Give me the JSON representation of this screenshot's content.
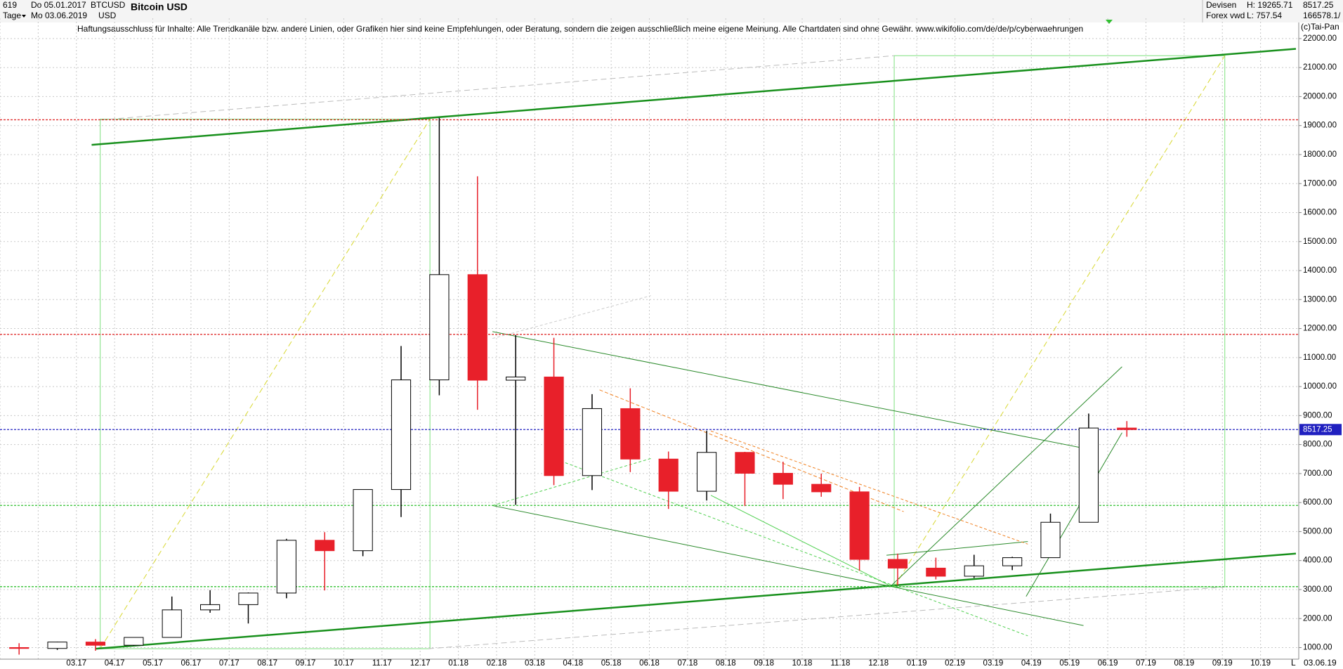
{
  "header": {
    "count": "619",
    "start": "Do 05.01.2017",
    "symbol": "BTCUSD",
    "name": "Bitcoin USD",
    "period": "Tage",
    "end": "Mo 03.06.2019",
    "currency": "USD",
    "market": "Devisen",
    "high": "H: 19265.71",
    "value1": "8517.25",
    "source": "Forex vwd",
    "low": "L: 757.54",
    "value2": "166578.1/",
    "disclaimer": "Haftungsausschluss für Inhalte: Alle Trendkanäle bzw. andere Linien, oder Grafiken hier sind keine Empfehlungen, oder Beratung, sondern die zeigen ausschließlich meine eigene Meinung. Alle Chartdaten sind ohne Gewähr.  www.wikifolio.com/de/de/p/cyberwaehrungen",
    "copyright": "(c)Tai-Pan",
    "axis_date": "03.06.19",
    "axis_mark": "L"
  },
  "chart_data": {
    "type": "candlestick",
    "categories": [
      null,
      null,
      "03.17",
      "04.17",
      "05.17",
      "06.17",
      "07.17",
      "08.17",
      "09.17",
      "10.17",
      "11.17",
      "12.17",
      "01.18",
      "02.18",
      "03.18",
      "04.18",
      "05.18",
      "06.18",
      "07.18",
      "08.18",
      "09.18",
      "10.18",
      "11.18",
      "12.18",
      "01.19",
      "02.19",
      "03.19",
      "04.19",
      "05.19",
      "06.19",
      "07.19",
      "08.19",
      "09.19",
      "10.19"
    ],
    "open": [
      1000,
      970,
      1190,
      1080,
      1350,
      2300,
      2480,
      2880,
      4700,
      4340,
      6450,
      10230,
      13860,
      10220,
      10330,
      6930,
      9240,
      7500,
      6390,
      7730,
      7010,
      6630,
      6370,
      4040,
      3740,
      3460,
      3820,
      4100,
      5320,
      8570,
      null,
      null,
      null,
      null
    ],
    "high": [
      1150,
      1200,
      1290,
      1350,
      2760,
      2980,
      2900,
      4750,
      4980,
      6450,
      11400,
      19265.71,
      17250,
      11780,
      11680,
      9740,
      9940,
      7760,
      8480,
      7750,
      7410,
      7000,
      6540,
      4240,
      4100,
      4200,
      4130,
      5620,
      9070,
      8810,
      null,
      null,
      null,
      null
    ],
    "low": [
      757.54,
      920,
      890,
      1060,
      1350,
      2200,
      1830,
      2700,
      2970,
      4150,
      5500,
      9700,
      9200,
      5920,
      6600,
      6430,
      7050,
      5780,
      6070,
      5880,
      6120,
      6200,
      3650,
      3150,
      3350,
      3400,
      3670,
      4100,
      5320,
      8270,
      null,
      null,
      null,
      null
    ],
    "close": [
      970,
      1190,
      1080,
      1350,
      2300,
      2480,
      2880,
      4700,
      4340,
      6450,
      10230,
      13860,
      10220,
      10330,
      6930,
      9240,
      7500,
      6390,
      7730,
      7010,
      6630,
      6370,
      4040,
      3740,
      3460,
      3820,
      4100,
      5320,
      8570,
      8517.25,
      null,
      null,
      null,
      null
    ],
    "up_color": "#ffffff",
    "down_color": "#e8202a",
    "wick_color": "#000000",
    "ylim": [
      600,
      22700
    ],
    "yticks": [
      {
        "value": 1000,
        "label": "1000.00"
      },
      {
        "value": 2000,
        "label": "2000.00"
      },
      {
        "value": 3000,
        "label": "3000.00"
      },
      {
        "value": 4000,
        "label": "4000.00"
      },
      {
        "value": 5000,
        "label": "5000.00"
      },
      {
        "value": 6000,
        "label": "6000.00"
      },
      {
        "value": 7000,
        "label": "7000.00"
      },
      {
        "value": 8000,
        "label": "8000.00"
      },
      {
        "value": 9000,
        "label": "9000.00"
      },
      {
        "value": 10000,
        "label": "10000.00"
      },
      {
        "value": 11000,
        "label": "11000.00"
      },
      {
        "value": 12000,
        "label": "12000.00"
      },
      {
        "value": 13000,
        "label": "13000.00"
      },
      {
        "value": 14000,
        "label": "14000.00"
      },
      {
        "value": 15000,
        "label": "15000.00"
      },
      {
        "value": 16000,
        "label": "16000.00"
      },
      {
        "value": 17000,
        "label": "17000.00"
      },
      {
        "value": 18000,
        "label": "18000.00"
      },
      {
        "value": 19000,
        "label": "19000.00"
      },
      {
        "value": 20000,
        "label": "20000.00"
      },
      {
        "value": 21000,
        "label": "21000.00"
      },
      {
        "value": 22000,
        "label": "22000.00"
      }
    ],
    "grid": true,
    "levels": [
      {
        "value": 19200,
        "color": "#e03030"
      },
      {
        "value": 11800,
        "color": "#e03030"
      },
      {
        "value": 5900,
        "color": "#30c030"
      },
      {
        "value": 3100,
        "color": "#30c030"
      }
    ],
    "last_price": 8517.25,
    "last_color": "#2020c0"
  }
}
